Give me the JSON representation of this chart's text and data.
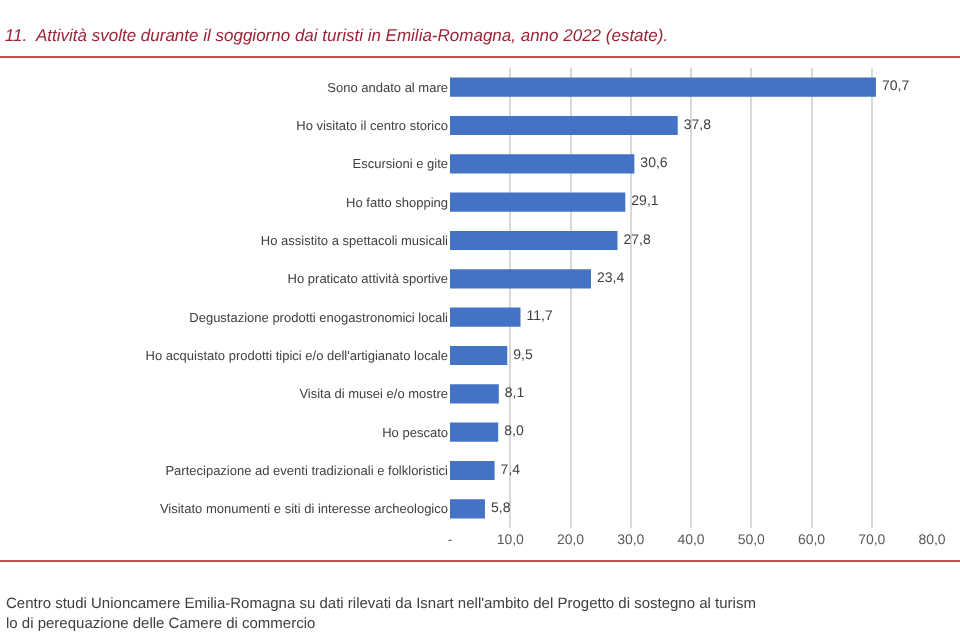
{
  "chart_data": {
    "type": "bar",
    "orientation": "horizontal",
    "title": "11.  Attività svolte durante il soggiorno dai turisti in Emilia-Romagna, anno 2022 (estate).",
    "categories": [
      "Sono andato al mare",
      "Ho visitato il centro storico",
      "Escursioni e gite",
      "Ho fatto shopping",
      "Ho assistito a spettacoli musicali",
      "Ho praticato attività sportive",
      "Degustazione prodotti enogastronomici locali",
      "Ho acquistato prodotti tipici e/o dell'artigianato locale",
      "Visita di musei e/o mostre",
      "Ho pescato",
      "Partecipazione ad eventi tradizionali e folkloristici",
      "Visitato monumenti e siti di interesse archeologico"
    ],
    "values": [
      70.7,
      37.8,
      30.6,
      29.1,
      27.8,
      23.4,
      11.7,
      9.5,
      8.1,
      8.0,
      7.4,
      5.8
    ],
    "value_labels": [
      "70,7",
      "37,8",
      "30,6",
      "29,1",
      "27,8",
      "23,4",
      "11,7",
      "9,5",
      "8,1",
      "8,0",
      "7,4",
      "5,8"
    ],
    "color": "#4472c4",
    "xlim": [
      0,
      80
    ],
    "xticks": [
      {
        "value": 0,
        "label": "-"
      },
      {
        "value": 10,
        "label": "10,0"
      },
      {
        "value": 20,
        "label": "20,0"
      },
      {
        "value": 30,
        "label": "30,0"
      },
      {
        "value": 40,
        "label": "40,0"
      },
      {
        "value": 50,
        "label": "50,0"
      },
      {
        "value": 60,
        "label": "60,0"
      },
      {
        "value": 70,
        "label": "70,0"
      },
      {
        "value": 80,
        "label": "80,0"
      }
    ],
    "grid": "x",
    "legend": false,
    "annotations": [
      "Centro studi Unioncamere Emilia-Romagna su dati rilevati da Isnart nell'ambito del Progetto di sostegno al turism\nlo di perequazione delle Camere di commercio"
    ]
  }
}
